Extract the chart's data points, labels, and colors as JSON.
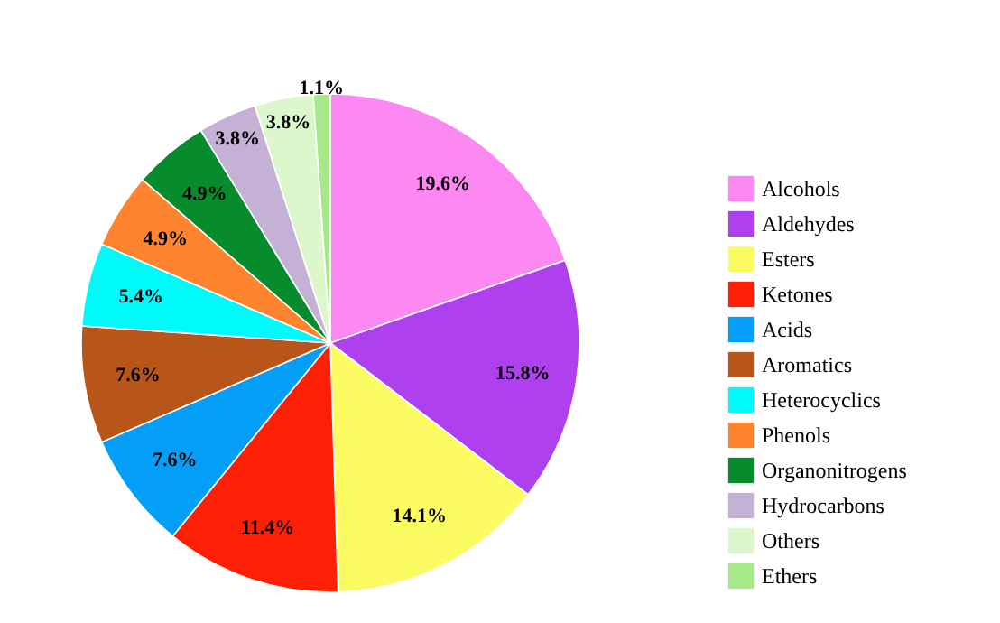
{
  "chart_data": {
    "type": "pie",
    "categories": [
      "Alcohols",
      "Aldehydes",
      "Esters",
      "Ketones",
      "Acids",
      "Aromatics",
      "Heterocyclics",
      "Phenols",
      "Organonitrogens",
      "Hydrocarbons",
      "Others",
      "Ethers"
    ],
    "values": [
      19.6,
      15.8,
      14.1,
      11.4,
      7.6,
      7.6,
      5.4,
      4.9,
      4.9,
      3.8,
      3.8,
      1.1
    ],
    "value_labels": [
      "19.6%",
      "15.8%",
      "14.1%",
      "11.4%",
      "7.6%",
      "7.6%",
      "5.4%",
      "4.9%",
      "4.9%",
      "3.8%",
      "3.8%",
      "1.1%"
    ],
    "colors": [
      "#fc88f2",
      "#ae40ee",
      "#fbfb62",
      "#fe2006",
      "#039ef5",
      "#b8561a",
      "#00fafa",
      "#fe8430",
      "#068b2d",
      "#c6b1d6",
      "#dcf7cc",
      "#a7e98a"
    ],
    "legend": "right"
  }
}
